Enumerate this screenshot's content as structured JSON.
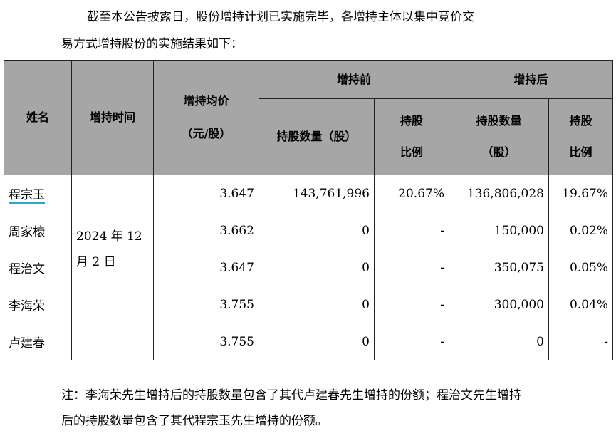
{
  "intro": [
    "截至本公告披露日，股份增持计划已实施完毕，各增持主体以集中竞价交",
    "易方式增持股份的实施结果如下："
  ],
  "table": {
    "headers": {
      "name": "姓名",
      "time": "增持时间",
      "avg_price": [
        "增持均价",
        "（元/股）"
      ],
      "before": "增持前",
      "after": "增持后",
      "before_qty": "持股数量（股）",
      "before_ratio": [
        "持股",
        "比例"
      ],
      "after_qty": [
        "持股数量",
        "（股）"
      ],
      "after_ratio": [
        "持股",
        "比例"
      ]
    },
    "time_value": [
      "2024 年 12",
      "月 2 日"
    ],
    "rows": [
      {
        "name": "程宗玉",
        "price": "3.647",
        "before_qty": "143,761,996",
        "before_ratio": "20.67%",
        "after_qty": "136,806,028",
        "after_ratio": "19.67%"
      },
      {
        "name": "周家榱",
        "price": "3.662",
        "before_qty": "0",
        "before_ratio": "-",
        "after_qty": "150,000",
        "after_ratio": "0.02%"
      },
      {
        "name": "程治文",
        "price": "3.647",
        "before_qty": "0",
        "before_ratio": "-",
        "after_qty": "350,075",
        "after_ratio": "0.05%"
      },
      {
        "name": "李海荣",
        "price": "3.755",
        "before_qty": "0",
        "before_ratio": "-",
        "after_qty": "300,000",
        "after_ratio": "0.04%"
      },
      {
        "name": "卢建春",
        "price": "3.755",
        "before_qty": "0",
        "before_ratio": "-",
        "after_qty": "0",
        "after_ratio": "-"
      }
    ]
  },
  "note": [
    "注：李海荣先生增持后的持股数量包含了其代卢建春先生增持的份额；程治文先生增持",
    "后的持股数量包含了其代程宗玉先生增持的份额。"
  ]
}
